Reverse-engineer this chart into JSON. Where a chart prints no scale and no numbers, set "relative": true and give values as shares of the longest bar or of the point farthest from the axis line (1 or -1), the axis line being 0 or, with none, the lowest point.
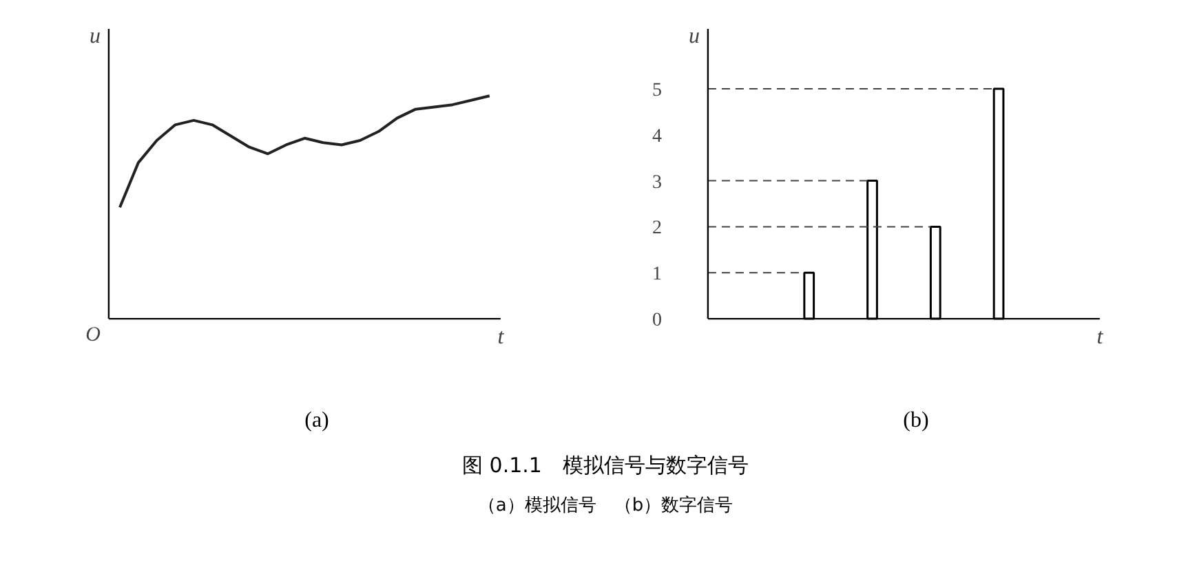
{
  "chart_data": [
    {
      "type": "line",
      "relative": true,
      "xlabel": "t",
      "ylabel": "u",
      "categories": [
        null,
        null,
        null,
        null,
        null,
        null,
        null,
        null,
        null,
        null,
        null,
        null,
        null,
        null,
        null,
        null,
        null,
        null,
        null,
        null,
        null
      ],
      "series": [
        {
          "color": "#222222",
          "values": [
            0.5,
            0.7,
            0.8,
            0.87,
            0.89,
            0.87,
            0.82,
            0.77,
            0.74,
            0.78,
            0.81,
            0.79,
            0.78,
            0.8,
            0.84,
            0.9,
            0.94,
            0.95,
            0.96,
            0.98,
            1.0
          ]
        }
      ],
      "annotations": [
        "(a)",
        "O"
      ]
    },
    {
      "type": "bar",
      "xlabel": "t",
      "ylabel": "u",
      "categories": [
        null,
        null,
        null,
        null
      ],
      "tick_labels": "y",
      "series": [
        {
          "color": "#ffffff",
          "values": [
            1,
            3,
            2,
            5
          ]
        }
      ],
      "ylim": [
        0,
        6.3
      ],
      "yticks": [
        0,
        1,
        2,
        3,
        4,
        5
      ],
      "ref_lines": [
        {
          "axis": "y",
          "value": 1,
          "color": "#444444",
          "line_style": "dashed"
        },
        {
          "axis": "y",
          "value": 3,
          "color": "#444444",
          "line_style": "dashed"
        },
        {
          "axis": "y",
          "value": 2,
          "color": "#444444",
          "line_style": "dashed"
        },
        {
          "axis": "y",
          "value": 5,
          "color": "#444444",
          "line_style": "dashed"
        }
      ],
      "annotations": [
        "(b)",
        "图 0.1.1　模拟信号与数字信号",
        "（a）模拟信号　（b）数字信号"
      ]
    }
  ]
}
